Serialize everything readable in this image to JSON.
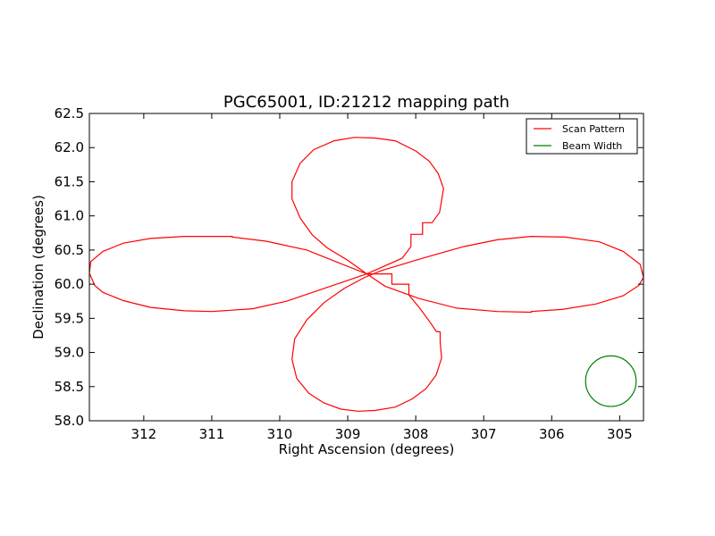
{
  "chart_data": {
    "type": "line",
    "title": "PGC65001, ID:21212 mapping path",
    "xlabel": "Right Ascension (degrees)",
    "ylabel": "Declination (degrees)",
    "xlim": [
      312.8,
      304.65
    ],
    "ylim": [
      58.0,
      62.5
    ],
    "x_ticks": [
      312,
      311,
      310,
      309,
      308,
      307,
      306,
      305
    ],
    "y_ticks": [
      58.0,
      58.5,
      59.0,
      59.5,
      60.0,
      60.5,
      61.0,
      61.5,
      62.0,
      62.5
    ],
    "grid": false,
    "legend_position": "top-right",
    "series": [
      {
        "name": "Scan Pattern",
        "color": "#ff0000",
        "points": [
          [
            308.72,
            60.15
          ],
          [
            308.2,
            60.38
          ],
          [
            308.07,
            60.55
          ],
          [
            308.07,
            60.73
          ],
          [
            307.9,
            60.73
          ],
          [
            307.9,
            60.9
          ],
          [
            307.76,
            60.9
          ],
          [
            307.65,
            61.05
          ],
          [
            307.59,
            61.4
          ],
          [
            307.67,
            61.62
          ],
          [
            307.8,
            61.8
          ],
          [
            308.0,
            61.95
          ],
          [
            308.3,
            62.1
          ],
          [
            308.6,
            62.14
          ],
          [
            308.9,
            62.15
          ],
          [
            309.2,
            62.1
          ],
          [
            309.5,
            61.97
          ],
          [
            309.7,
            61.77
          ],
          [
            309.82,
            61.5
          ],
          [
            309.82,
            61.25
          ],
          [
            309.7,
            60.97
          ],
          [
            309.52,
            60.72
          ],
          [
            309.3,
            60.53
          ],
          [
            309.0,
            60.35
          ],
          [
            308.72,
            60.15
          ],
          [
            308.35,
            60.15
          ],
          [
            308.35,
            60.0
          ],
          [
            308.1,
            60.0
          ],
          [
            308.1,
            59.84
          ],
          [
            307.95,
            59.66
          ],
          [
            307.78,
            59.43
          ],
          [
            307.7,
            59.31
          ],
          [
            307.64,
            59.3
          ],
          [
            307.64,
            59.15
          ],
          [
            307.62,
            58.92
          ],
          [
            307.7,
            58.67
          ],
          [
            307.85,
            58.47
          ],
          [
            308.05,
            58.32
          ],
          [
            308.3,
            58.2
          ],
          [
            308.6,
            58.15
          ],
          [
            308.85,
            58.14
          ],
          [
            309.1,
            58.17
          ],
          [
            309.35,
            58.26
          ],
          [
            309.57,
            58.4
          ],
          [
            309.75,
            58.62
          ],
          [
            309.82,
            58.9
          ],
          [
            309.78,
            59.2
          ],
          [
            309.6,
            59.48
          ],
          [
            309.35,
            59.73
          ],
          [
            309.05,
            59.94
          ],
          [
            308.75,
            60.1
          ],
          [
            308.5,
            60.2
          ],
          [
            307.9,
            60.38
          ],
          [
            307.3,
            60.55
          ],
          [
            306.8,
            60.65
          ],
          [
            306.3,
            60.7
          ],
          [
            305.8,
            60.69
          ],
          [
            305.3,
            60.62
          ],
          [
            304.95,
            60.48
          ],
          [
            304.7,
            60.29
          ],
          [
            304.65,
            60.1
          ],
          [
            304.72,
            59.98
          ],
          [
            304.95,
            59.83
          ],
          [
            305.35,
            59.71
          ],
          [
            305.85,
            59.63
          ],
          [
            306.3,
            59.6
          ],
          [
            306.3,
            59.59
          ],
          [
            306.8,
            59.6
          ],
          [
            307.4,
            59.65
          ],
          [
            307.95,
            59.79
          ],
          [
            308.45,
            59.97
          ],
          [
            308.72,
            60.15
          ],
          [
            309.1,
            60.3
          ],
          [
            309.6,
            60.5
          ],
          [
            310.2,
            60.63
          ],
          [
            310.7,
            60.69
          ],
          [
            310.7,
            60.7
          ],
          [
            311.0,
            60.7
          ],
          [
            311.4,
            60.7
          ],
          [
            311.9,
            60.67
          ],
          [
            312.3,
            60.6
          ],
          [
            312.6,
            60.48
          ],
          [
            312.78,
            60.33
          ],
          [
            312.8,
            60.16
          ],
          [
            312.72,
            59.98
          ],
          [
            312.6,
            59.88
          ],
          [
            312.3,
            59.76
          ],
          [
            311.9,
            59.66
          ],
          [
            311.4,
            59.61
          ],
          [
            311.0,
            59.6
          ],
          [
            310.4,
            59.64
          ],
          [
            309.9,
            59.75
          ],
          [
            309.4,
            59.92
          ],
          [
            308.72,
            60.15
          ]
        ]
      },
      {
        "name": "Beam Width",
        "color": "#008000",
        "center": [
          305.13,
          58.58
        ],
        "radius_dec": 0.37
      }
    ]
  }
}
